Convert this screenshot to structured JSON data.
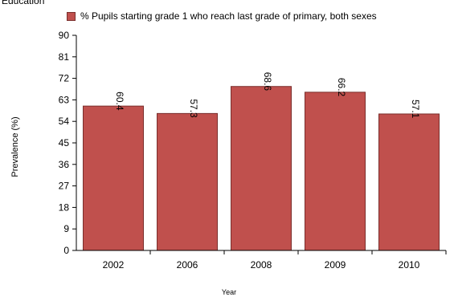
{
  "page": {
    "title": "Education"
  },
  "colors": {
    "bar": "#c0504d",
    "bar_border": "#7a2e2c"
  },
  "chart_data": {
    "type": "bar",
    "title": "",
    "categories": [
      "2002",
      "2006",
      "2008",
      "2009",
      "2010"
    ],
    "series": [
      {
        "name": "% Pupils starting grade 1 who reach last grade of primary, both sexes",
        "values": [
          60.4,
          57.3,
          68.6,
          66.2,
          57.1
        ]
      }
    ],
    "value_labels": [
      "60.4",
      "57.3",
      "68.6",
      "66.2",
      "57.1"
    ],
    "xlabel": "Year",
    "ylabel": "Prevalence (%)",
    "ylim": [
      0,
      90
    ],
    "yticks": [
      0,
      9,
      18,
      27,
      36,
      45,
      54,
      63,
      72,
      81,
      90
    ],
    "grid": false,
    "legend_position": "top"
  }
}
